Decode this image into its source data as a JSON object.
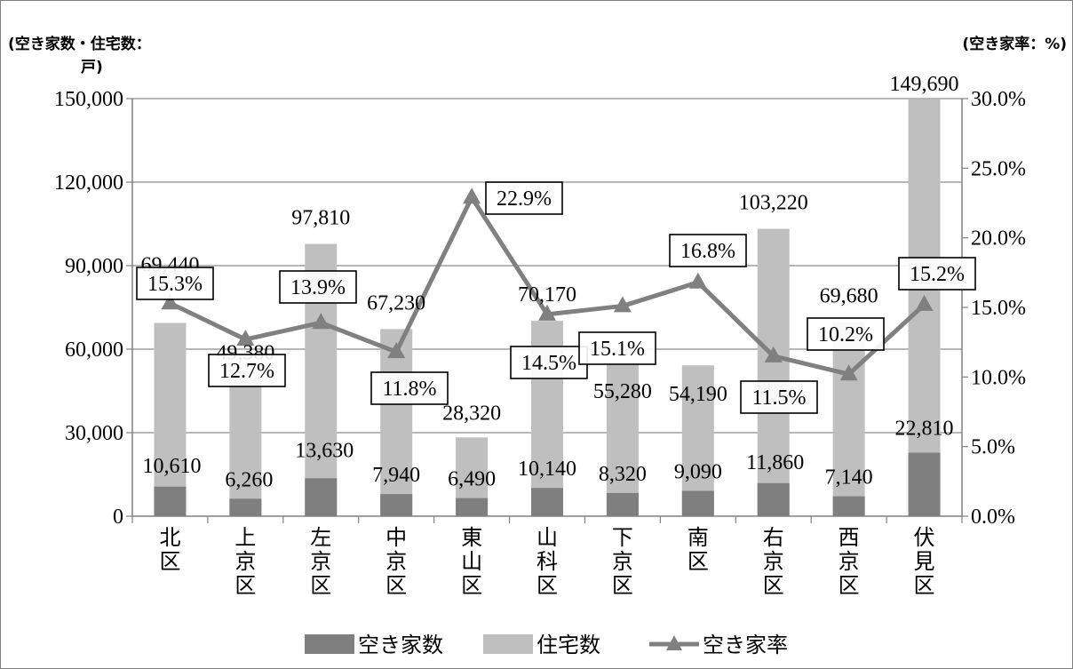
{
  "chart_data": {
    "type": "bar",
    "categories": [
      [
        "北",
        "区"
      ],
      [
        "上",
        "京",
        "区"
      ],
      [
        "左",
        "京",
        "区"
      ],
      [
        "中",
        "京",
        "区"
      ],
      [
        "東",
        "山",
        "区"
      ],
      [
        "山",
        "科",
        "区"
      ],
      [
        "下",
        "京",
        "区"
      ],
      [
        "南",
        "区"
      ],
      [
        "右",
        "京",
        "区"
      ],
      [
        "西",
        "京",
        "区"
      ],
      [
        "伏",
        "見",
        "区"
      ]
    ],
    "series": [
      {
        "name": "空き家数",
        "kind": "bar",
        "axis": "left",
        "color": "#7f7f7f",
        "values": [
          10610,
          6260,
          13630,
          7940,
          6490,
          10140,
          8320,
          9090,
          11860,
          7140,
          22810
        ],
        "labels": [
          "10,610",
          "6,260",
          "13,630",
          "7,940",
          "6,490",
          "10,140",
          "8,320",
          "9,090",
          "11,860",
          "7,140",
          "22,810"
        ]
      },
      {
        "name": "住宅数",
        "kind": "bar",
        "axis": "left",
        "color": "#bfbfbf",
        "values": [
          69440,
          49380,
          97810,
          67230,
          28320,
          70170,
          55280,
          54190,
          103220,
          69680,
          149690
        ],
        "labels": [
          "69,440",
          "49,380",
          "97,810",
          "67,230",
          "28,320",
          "70,170",
          "55,280",
          "54,190",
          "103,220",
          "69,680",
          "149,690"
        ]
      },
      {
        "name": "空き家率",
        "kind": "line",
        "axis": "right",
        "color": "#808080",
        "values": [
          15.3,
          12.7,
          13.9,
          11.8,
          22.9,
          14.5,
          15.1,
          16.8,
          11.5,
          10.2,
          15.2
        ],
        "labels": [
          "15.3%",
          "12.7%",
          "13.9%",
          "11.8%",
          "22.9%",
          "14.5%",
          "15.1%",
          "16.8%",
          "11.5%",
          "10.2%",
          "15.2%"
        ]
      }
    ],
    "ylabel_left_line1": "(空き家数・住宅数：",
    "ylabel_left_line2": "戸)",
    "ylabel_right": "(空き家率：%)",
    "ylim_left": [
      0,
      150000
    ],
    "ylim_right": [
      0,
      30
    ],
    "yticks_left": [
      "0",
      "30,000",
      "60,000",
      "90,000",
      "120,000",
      "150,000"
    ],
    "yticks_right": [
      "0.0%",
      "5.0%",
      "10.0%",
      "15.0%",
      "20.0%",
      "25.0%",
      "30.0%"
    ],
    "grid": true,
    "legend_position": "bottom"
  }
}
